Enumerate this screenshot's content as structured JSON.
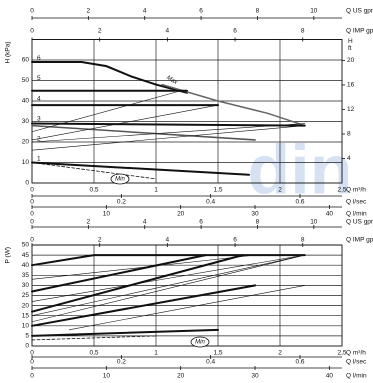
{
  "watermark": "din",
  "chart_data": [
    {
      "type": "line",
      "ylabel": "H (kPa)",
      "ylim": [
        0,
        70
      ],
      "yticks": [
        0,
        10,
        20,
        30,
        40,
        50,
        60
      ],
      "y2label": [
        "H",
        "ft"
      ],
      "y2lim": [
        0,
        23.42
      ],
      "y2ticks": [
        4,
        8,
        12,
        16,
        20
      ],
      "y3lim": [
        0,
        7.14
      ],
      "y3ticks": [
        1,
        2,
        3,
        4,
        5,
        6
      ],
      "xlabel": "Q m³/h",
      "xlim": [
        0,
        2.5
      ],
      "xticks": [
        0,
        {
          "value": 0.5,
          "label": "0,5"
        },
        1,
        {
          "value": 1.5,
          "label": "1,5"
        },
        2,
        {
          "value": 2.5,
          "label": "2,5"
        }
      ],
      "x_axes": [
        {
          "label": "Q US gpm",
          "lim": [
            0,
            11.0
          ],
          "ticks": [
            0,
            2,
            4,
            6,
            8,
            10
          ]
        },
        {
          "label": "Q IMP gpm",
          "lim": [
            0,
            9.16
          ],
          "ticks": [
            0,
            2,
            4,
            6,
            8
          ]
        },
        {
          "label": "Q l/sec",
          "lim": [
            0,
            0.694
          ],
          "ticks": [
            0,
            0.2,
            0.4,
            0.6
          ]
        },
        {
          "label": "Q l/min",
          "lim": [
            0,
            41.7
          ],
          "ticks": [
            0,
            10,
            20,
            30,
            40
          ]
        }
      ],
      "grid": true,
      "annotations": [
        "Max",
        "Min"
      ],
      "series": [
        {
          "color": "#111",
          "width": 2,
          "x": [
            0,
            0.4,
            0.6,
            0.8,
            1.0,
            1.25
          ],
          "values": [
            59,
            59,
            57,
            52,
            48,
            44
          ]
        },
        {
          "color": "#666",
          "width": 1.5,
          "x": [
            1.05,
            1.5,
            1.9,
            2.2
          ],
          "values": [
            48,
            40,
            34,
            28
          ]
        },
        {
          "color": "#111",
          "width": 2,
          "x": [
            0,
            1.25
          ],
          "values": [
            45,
            45
          ]
        },
        {
          "color": "#111",
          "width": 2,
          "x": [
            0,
            1.5
          ],
          "values": [
            38,
            38
          ]
        },
        {
          "color": "#111",
          "width": 2,
          "x": [
            0,
            2.2
          ],
          "values": [
            29,
            28
          ]
        },
        {
          "color": "#555",
          "width": 1.5,
          "x": [
            0,
            1.8
          ],
          "values": [
            28,
            21
          ]
        },
        {
          "color": "#111",
          "width": 2,
          "x": [
            0,
            1.75
          ],
          "values": [
            10,
            4
          ]
        },
        {
          "color": "#111",
          "width": 0.8,
          "dash": true,
          "x": [
            0,
            1.0
          ],
          "values": [
            10,
            2
          ]
        },
        {
          "color": "#111",
          "width": 0.6,
          "x": [
            0,
            2.2
          ],
          "values": [
            16,
            28
          ]
        },
        {
          "color": "#111",
          "width": 0.6,
          "x": [
            0,
            1.5
          ],
          "values": [
            21,
            38
          ]
        },
        {
          "color": "#111",
          "width": 0.6,
          "x": [
            0,
            1.2
          ],
          "values": [
            25,
            45
          ]
        },
        {
          "color": "#111",
          "width": 0.6,
          "x": [
            0,
            2.2
          ],
          "values": [
            20,
            29
          ]
        }
      ]
    },
    {
      "type": "line",
      "ylabel": "P (W)",
      "ylim": [
        0,
        50
      ],
      "yticks": [
        0,
        5,
        10,
        15,
        20,
        25,
        30,
        35,
        40,
        45,
        50
      ],
      "xlabel": "Q m³/h",
      "xlim": [
        0,
        2.5
      ],
      "xticks": [
        0,
        {
          "value": 0.5,
          "label": "0,5"
        },
        1,
        {
          "value": 1.5,
          "label": "1,5"
        },
        2,
        {
          "value": 2.5,
          "label": "2,5"
        }
      ],
      "x_axes": [
        {
          "label": "Q US gpm",
          "lim": [
            0,
            11.0
          ],
          "ticks": [
            0,
            2,
            4,
            6,
            8,
            10
          ]
        },
        {
          "label": "Q IMP gpm",
          "lim": [
            0,
            9.16
          ],
          "ticks": [
            0,
            2,
            4,
            6,
            8
          ]
        },
        {
          "label": "Q l/sec",
          "lim": [
            0,
            0.694
          ],
          "ticks": [
            0,
            0.2,
            0.4,
            0.6
          ]
        },
        {
          "label": "Q l/min",
          "lim": [
            0,
            41.7
          ],
          "ticks": [
            0,
            10,
            20,
            30,
            40
          ]
        }
      ],
      "grid": true,
      "annotations": [
        "Min"
      ],
      "series": [
        {
          "color": "#111",
          "width": 2,
          "x": [
            0,
            0.3,
            0.5,
            1.0,
            1.5,
            2.2
          ],
          "values": [
            40,
            43,
            45,
            45,
            45,
            45
          ]
        },
        {
          "color": "#111",
          "width": 2,
          "x": [
            0,
            1.4
          ],
          "values": [
            27,
            45
          ]
        },
        {
          "color": "#111",
          "width": 2,
          "x": [
            0,
            1.7
          ],
          "values": [
            17,
            45
          ]
        },
        {
          "color": "#111",
          "width": 2,
          "x": [
            0,
            1.8
          ],
          "values": [
            10,
            30
          ]
        },
        {
          "color": "#111",
          "width": 2,
          "x": [
            0,
            1.5
          ],
          "values": [
            5,
            8
          ]
        },
        {
          "color": "#111",
          "width": 0.8,
          "dash": true,
          "x": [
            0,
            1.0
          ],
          "values": [
            3,
            5
          ]
        },
        {
          "color": "#111",
          "width": 0.6,
          "x": [
            0,
            2.2
          ],
          "values": [
            12,
            45
          ]
        },
        {
          "color": "#111",
          "width": 0.6,
          "x": [
            0,
            2.2
          ],
          "values": [
            22,
            45
          ]
        },
        {
          "color": "#111",
          "width": 0.6,
          "x": [
            0,
            1.8
          ],
          "values": [
            33,
            45
          ]
        },
        {
          "color": "#111",
          "width": 0.6,
          "x": [
            0.3,
            2.2
          ],
          "values": [
            8,
            30
          ]
        },
        {
          "color": "#111",
          "width": 0.6,
          "x": [
            0,
            2.2
          ],
          "values": [
            15,
            45
          ]
        }
      ]
    }
  ]
}
